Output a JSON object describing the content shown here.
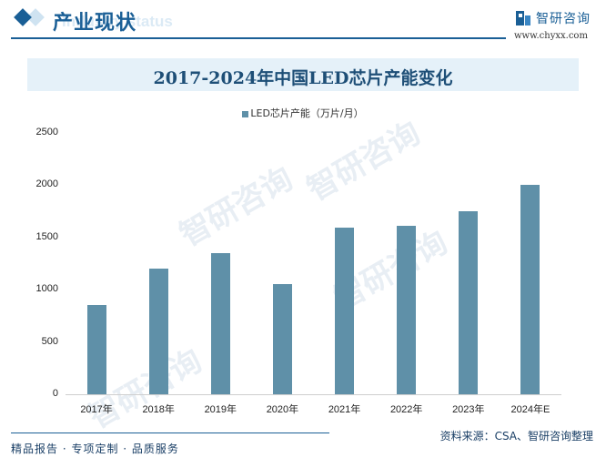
{
  "header": {
    "section_title": "产业现状",
    "section_subtitle": "Industry status",
    "brand_name": "智研咨询",
    "brand_url": "www.chyxx.com"
  },
  "chart_title": "2017-2024年中国LED芯片产能变化",
  "legend": {
    "label": "LED芯片产能（万片/月）",
    "color": "#5f90a8"
  },
  "y_ticks": [
    "2500",
    "2000",
    "1500",
    "1000",
    "500",
    "0"
  ],
  "chart_data": {
    "type": "bar",
    "title": "2017-2024年中国LED芯片产能变化",
    "categories": [
      "2017年",
      "2018年",
      "2019年",
      "2020年",
      "2021年",
      "2022年",
      "2023年",
      "2024年E"
    ],
    "series": [
      {
        "name": "LED芯片产能（万片/月）",
        "values": [
          854,
          1202,
          1350,
          1054,
          1594,
          1611,
          1751,
          2003
        ],
        "color": "#5f90a8"
      }
    ],
    "xlabel": "",
    "ylabel": "",
    "ylim": [
      0,
      2500
    ],
    "yticks": [
      0,
      500,
      1000,
      1500,
      2000,
      2500
    ],
    "grid": false,
    "legend_position": "top"
  },
  "footer": {
    "tagline": "精品报告 · 专项定制 · 品质服务",
    "source": "资料来源：CSA、智研咨询整理"
  },
  "watermark": "智研咨询"
}
